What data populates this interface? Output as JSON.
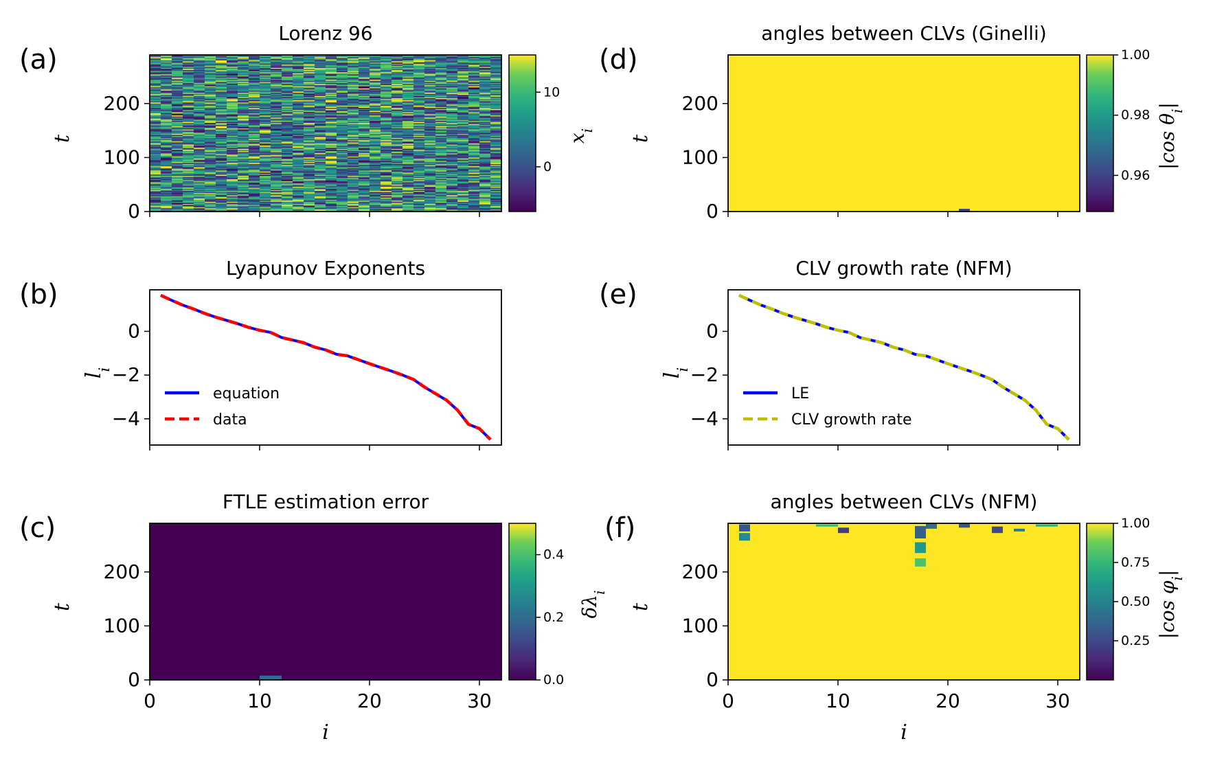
{
  "chart_data": [
    {
      "panel_label": "(a)",
      "type": "heatmap",
      "title": "Lorenz 96",
      "xlabel": "",
      "ylabel": "t",
      "xlim": [
        0,
        32
      ],
      "ylim": [
        0,
        290
      ],
      "yticks": [
        0,
        100,
        200
      ],
      "xticks_unlabeled": [
        0,
        10,
        20,
        30
      ],
      "colormap": "viridis",
      "pattern": "random",
      "colorbar": {
        "label": "x_i",
        "ticks": [
          0,
          10
        ],
        "range": [
          -6,
          15
        ]
      }
    },
    {
      "panel_label": "(b)",
      "type": "line",
      "title": "Lyapunov Exponents",
      "xlabel": "",
      "ylabel": "l_i",
      "xlim": [
        0,
        32
      ],
      "ylim": [
        -5.2,
        1.9
      ],
      "yticks": [
        -4,
        -2,
        0
      ],
      "xticks_unlabeled": [
        0,
        10,
        20,
        30
      ],
      "legend": "lower-left",
      "x": [
        1,
        2,
        3,
        4,
        5,
        6,
        7,
        8,
        9,
        10,
        11,
        12,
        13,
        14,
        15,
        16,
        17,
        18,
        19,
        20,
        21,
        22,
        23,
        24,
        25,
        26,
        27,
        28,
        29,
        30,
        31
      ],
      "series": [
        {
          "name": "equation",
          "color": "#0000ff",
          "dash": "solid",
          "values": [
            1.65,
            1.42,
            1.2,
            1.02,
            0.82,
            0.65,
            0.5,
            0.35,
            0.18,
            0.05,
            -0.05,
            -0.28,
            -0.4,
            -0.52,
            -0.72,
            -0.85,
            -1.05,
            -1.12,
            -1.3,
            -1.48,
            -1.65,
            -1.82,
            -2.0,
            -2.2,
            -2.55,
            -2.85,
            -3.15,
            -3.6,
            -4.25,
            -4.45,
            -4.95
          ]
        },
        {
          "name": "data",
          "color": "#ff0000",
          "dash": "dashed",
          "values": [
            1.65,
            1.42,
            1.2,
            1.02,
            0.82,
            0.65,
            0.5,
            0.35,
            0.18,
            0.05,
            -0.05,
            -0.28,
            -0.4,
            -0.52,
            -0.72,
            -0.85,
            -1.05,
            -1.12,
            -1.3,
            -1.48,
            -1.65,
            -1.82,
            -2.0,
            -2.2,
            -2.55,
            -2.85,
            -3.15,
            -3.6,
            -4.25,
            -4.45,
            -4.95
          ]
        }
      ]
    },
    {
      "panel_label": "(c)",
      "type": "heatmap",
      "title": "FTLE estimation error",
      "xlabel": "i",
      "ylabel": "t",
      "xlim": [
        0,
        32
      ],
      "ylim": [
        0,
        290
      ],
      "xticks": [
        0,
        10,
        20,
        30
      ],
      "yticks": [
        0,
        100,
        200
      ],
      "colormap": "viridis",
      "fill_value": 0.0,
      "patches": [
        {
          "i": [
            10,
            12
          ],
          "t": [
            0,
            8
          ],
          "value": 0.2
        }
      ],
      "colorbar": {
        "label": "δλ_i",
        "ticks": [
          0.0,
          0.2,
          0.4
        ],
        "tick_labels": [
          "0.0",
          "0.2",
          "0.4"
        ],
        "range": [
          0,
          0.5
        ]
      }
    },
    {
      "panel_label": "(d)",
      "type": "heatmap",
      "title": "angles between CLVs (Ginelli)",
      "xlabel": "",
      "ylabel": "t",
      "xlim": [
        0,
        32
      ],
      "ylim": [
        0,
        290
      ],
      "yticks": [
        0,
        100,
        200
      ],
      "xticks_unlabeled": [
        0,
        10,
        20,
        30
      ],
      "colormap": "viridis",
      "fill_value": 1.0,
      "patches": [
        {
          "i": [
            21,
            22
          ],
          "t": [
            0,
            5
          ],
          "value": 0.96
        }
      ],
      "colorbar": {
        "label": "|cos θ_i|",
        "ticks": [
          0.96,
          0.98,
          1.0
        ],
        "tick_labels": [
          "0.96",
          "0.98",
          "1.00"
        ],
        "range": [
          0.948,
          1.0
        ]
      }
    },
    {
      "panel_label": "(e)",
      "type": "line",
      "title": "CLV growth rate (NFM)",
      "xlabel": "",
      "ylabel": "l_i",
      "xlim": [
        0,
        32
      ],
      "ylim": [
        -5.2,
        1.9
      ],
      "yticks": [
        -4,
        -2,
        0
      ],
      "xticks_unlabeled": [
        0,
        10,
        20,
        30
      ],
      "legend": "lower-left",
      "x": [
        1,
        2,
        3,
        4,
        5,
        6,
        7,
        8,
        9,
        10,
        11,
        12,
        13,
        14,
        15,
        16,
        17,
        18,
        19,
        20,
        21,
        22,
        23,
        24,
        25,
        26,
        27,
        28,
        29,
        30,
        31
      ],
      "series": [
        {
          "name": "LE",
          "color": "#0000ff",
          "dash": "solid",
          "values": [
            1.65,
            1.42,
            1.2,
            1.02,
            0.82,
            0.65,
            0.5,
            0.35,
            0.18,
            0.05,
            -0.05,
            -0.28,
            -0.4,
            -0.52,
            -0.72,
            -0.85,
            -1.05,
            -1.12,
            -1.3,
            -1.48,
            -1.65,
            -1.82,
            -2.0,
            -2.2,
            -2.55,
            -2.85,
            -3.15,
            -3.6,
            -4.25,
            -4.45,
            -4.95
          ]
        },
        {
          "name": "CLV growth rate",
          "color": "#bfbf00",
          "dash": "dashed",
          "values": [
            1.65,
            1.42,
            1.2,
            1.02,
            0.82,
            0.65,
            0.5,
            0.35,
            0.18,
            0.05,
            -0.05,
            -0.28,
            -0.4,
            -0.52,
            -0.72,
            -0.85,
            -1.05,
            -1.12,
            -1.3,
            -1.48,
            -1.65,
            -1.82,
            -2.0,
            -2.2,
            -2.55,
            -2.85,
            -3.15,
            -3.6,
            -4.25,
            -4.45,
            -4.95
          ]
        }
      ]
    },
    {
      "panel_label": "(f)",
      "type": "heatmap",
      "title": "angles between CLVs (NFM)",
      "xlabel": "i",
      "ylabel": "t",
      "xlim": [
        0,
        32
      ],
      "ylim": [
        0,
        290
      ],
      "xticks": [
        0,
        10,
        20,
        30
      ],
      "yticks": [
        0,
        100,
        200
      ],
      "colormap": "viridis",
      "fill_value": 1.0,
      "patches": [
        {
          "i": [
            1,
            2
          ],
          "t": [
            275,
            288
          ],
          "value": 0.3
        },
        {
          "i": [
            1,
            2
          ],
          "t": [
            258,
            272
          ],
          "value": 0.55
        },
        {
          "i": [
            10,
            11
          ],
          "t": [
            272,
            282
          ],
          "value": 0.2
        },
        {
          "i": [
            17,
            18
          ],
          "t": [
            262,
            285
          ],
          "value": 0.35
        },
        {
          "i": [
            17,
            18
          ],
          "t": [
            235,
            255
          ],
          "value": 0.6
        },
        {
          "i": [
            17,
            18
          ],
          "t": [
            210,
            225
          ],
          "value": 0.8
        },
        {
          "i": [
            18,
            19
          ],
          "t": [
            280,
            289
          ],
          "value": 0.4
        },
        {
          "i": [
            21,
            22
          ],
          "t": [
            282,
            289
          ],
          "value": 0.3
        },
        {
          "i": [
            24,
            25
          ],
          "t": [
            272,
            284
          ],
          "value": 0.25
        },
        {
          "i": [
            26,
            27
          ],
          "t": [
            275,
            280
          ],
          "value": 0.45
        },
        {
          "i": [
            8,
            10
          ],
          "t": [
            284,
            288
          ],
          "value": 0.75
        },
        {
          "i": [
            28,
            30
          ],
          "t": [
            284,
            288
          ],
          "value": 0.7
        }
      ],
      "colorbar": {
        "label": "|cos φ_i|",
        "ticks": [
          0.25,
          0.5,
          0.75,
          1.0
        ],
        "tick_labels": [
          "0.25",
          "0.50",
          "0.75",
          "1.00"
        ],
        "range": [
          0.0,
          1.0
        ]
      }
    }
  ]
}
